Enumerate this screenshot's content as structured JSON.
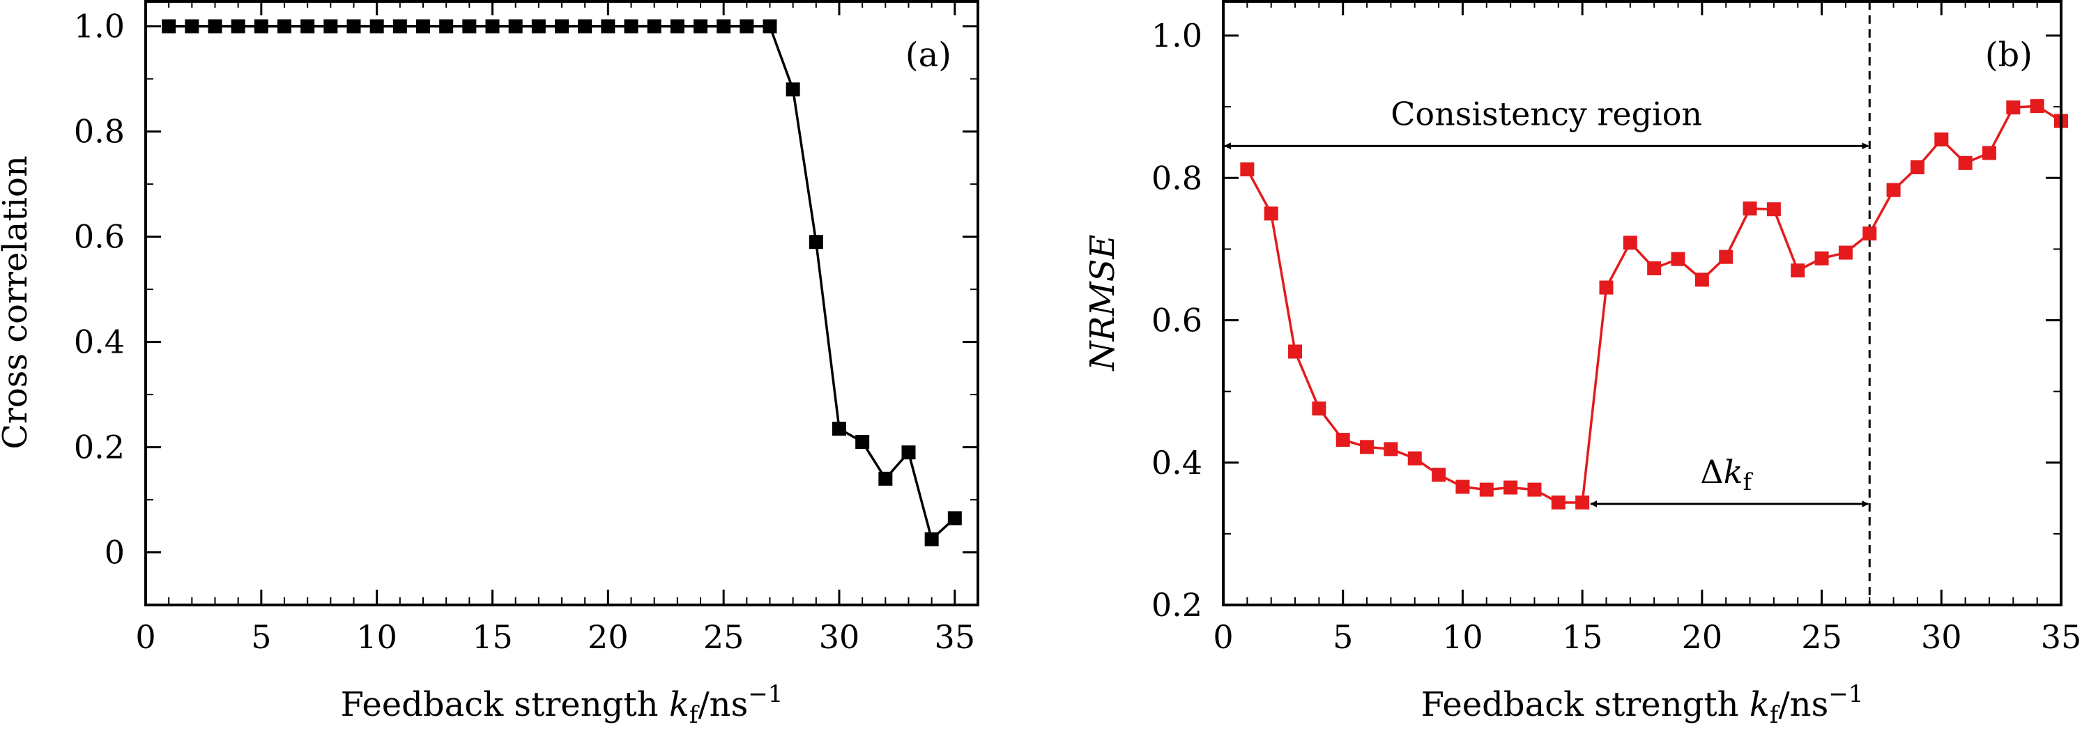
{
  "chart_data": [
    {
      "type": "line",
      "panel_label": "(a)",
      "xlabel_prefix": "Feedback strength ",
      "xlabel_k": "k",
      "xlabel_sub": "f",
      "xlabel_unit": "/ns",
      "xlabel_sup": "−1",
      "ylabel": "Cross correlation",
      "xlim": [
        0,
        36
      ],
      "ylim": [
        -0.1,
        1.05
      ],
      "xticks": [
        0,
        5,
        10,
        15,
        20,
        25,
        30,
        35
      ],
      "yticks": [
        0,
        0.2,
        0.4,
        0.6,
        0.8,
        1.0
      ],
      "ytick_labels": [
        "0",
        "0.2",
        "0.4",
        "0.6",
        "0.8",
        "1.0"
      ],
      "series": [
        {
          "color": "#000000",
          "marker": "square",
          "x": [
            1,
            2,
            3,
            4,
            5,
            6,
            7,
            8,
            9,
            10,
            11,
            12,
            13,
            14,
            15,
            16,
            17,
            18,
            19,
            20,
            21,
            22,
            23,
            24,
            25,
            26,
            27,
            28,
            29,
            30,
            31,
            32,
            33,
            34,
            35
          ],
          "y": [
            1,
            1,
            1,
            1,
            1,
            1,
            1,
            1,
            1,
            1,
            1,
            1,
            1,
            1,
            1,
            1,
            1,
            1,
            1,
            1,
            1,
            1,
            1,
            1,
            1,
            1,
            1,
            0.88,
            0.59,
            0.235,
            0.21,
            0.14,
            0.19,
            0.025,
            0.065
          ]
        }
      ]
    },
    {
      "type": "line",
      "panel_label": "(b)",
      "xlabel_prefix": "Feedback strength ",
      "xlabel_k": "k",
      "xlabel_sub": "f",
      "xlabel_unit": "/ns",
      "xlabel_sup": "−1",
      "ylabel": "NRMSE",
      "xlim": [
        0,
        35
      ],
      "ylim": [
        0.2,
        1.05
      ],
      "xticks": [
        0,
        5,
        10,
        15,
        20,
        25,
        30,
        35
      ],
      "yticks": [
        0.2,
        0.4,
        0.6,
        0.8,
        1.0
      ],
      "ytick_labels": [
        "0.2",
        "0.4",
        "0.6",
        "0.8",
        "1.0"
      ],
      "vline_x": 27,
      "annotations": {
        "consistency": {
          "text": "Consistency region",
          "x_from": 0,
          "x_to": 27,
          "y": 0.845
        },
        "delta": {
          "text_delta": "Δ",
          "text_k": "k",
          "text_sub": "f",
          "x_from": 15,
          "x_to": 27,
          "y": 0.342
        }
      },
      "series": [
        {
          "color": "#e41a1c",
          "marker": "square",
          "x": [
            1,
            2,
            3,
            4,
            5,
            6,
            7,
            8,
            9,
            10,
            11,
            12,
            13,
            14,
            15,
            16,
            17,
            18,
            19,
            20,
            21,
            22,
            23,
            24,
            25,
            26,
            27,
            28,
            29,
            30,
            31,
            32,
            33,
            34,
            35
          ],
          "y": [
            0.812,
            0.75,
            0.556,
            0.476,
            0.432,
            0.422,
            0.419,
            0.406,
            0.383,
            0.366,
            0.362,
            0.365,
            0.362,
            0.344,
            0.344,
            0.646,
            0.709,
            0.673,
            0.686,
            0.657,
            0.689,
            0.757,
            0.756,
            0.67,
            0.687,
            0.695,
            0.722,
            0.783,
            0.815,
            0.854,
            0.821,
            0.835,
            0.899,
            0.901,
            0.88
          ]
        }
      ]
    }
  ]
}
